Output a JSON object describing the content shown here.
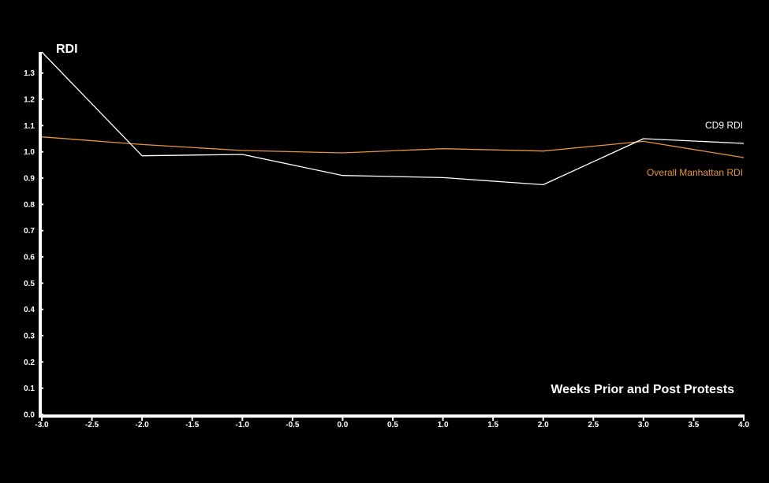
{
  "chart_data": {
    "type": "line",
    "title": "",
    "xlabel": "Weeks Prior and Post Protests",
    "ylabel": "RDI",
    "xlim": [
      -3.0,
      4.0
    ],
    "ylim": [
      0.0,
      1.38
    ],
    "x_ticks": [
      -3.0,
      -2.5,
      -2.0,
      -1.5,
      -1.0,
      -0.5,
      0.0,
      0.5,
      1.0,
      1.5,
      2.0,
      2.5,
      3.0,
      3.5,
      4.0
    ],
    "x_tick_labels": [
      "-3.0",
      "-2.5",
      "-2.0",
      "-1.5",
      "-1.0",
      "-0.5",
      "0.0",
      "0.5",
      "1.0",
      "1.5",
      "2.0",
      "2.5",
      "3.0",
      "3.5",
      "4.0"
    ],
    "y_ticks": [
      0.0,
      0.1,
      0.2,
      0.3,
      0.4,
      0.5,
      0.6,
      0.7,
      0.8,
      0.9,
      1.0,
      1.1,
      1.2,
      1.3
    ],
    "y_tick_labels": [
      "0.0",
      "0.1",
      "0.2",
      "0.3",
      "0.4",
      "0.5",
      "0.6",
      "0.7",
      "0.8",
      "0.9",
      "1.0",
      "1.1",
      "1.2",
      "1.3"
    ],
    "grid": false,
    "legend": "inline labels at right end of lines",
    "series": [
      {
        "name": "CD9 RDI",
        "color": "#ffffff",
        "x": [
          -3.0,
          -2.0,
          -1.0,
          0.0,
          1.0,
          2.0,
          3.0,
          4.0
        ],
        "values": [
          1.38,
          0.985,
          0.99,
          0.91,
          0.902,
          0.875,
          1.05,
          1.032
        ]
      },
      {
        "name": "Overall Manhattan RDI",
        "color": "#e8953a",
        "x": [
          -3.0,
          -2.0,
          -1.0,
          0.0,
          1.0,
          2.0,
          3.0,
          4.0
        ],
        "values": [
          1.057,
          1.028,
          1.005,
          0.996,
          1.012,
          1.003,
          1.04,
          0.978
        ]
      }
    ]
  },
  "colors": {
    "background": "#000000",
    "axis": "#ffffff",
    "cd9_line": "#ffffff",
    "manhattan_line": "#e8953a"
  }
}
